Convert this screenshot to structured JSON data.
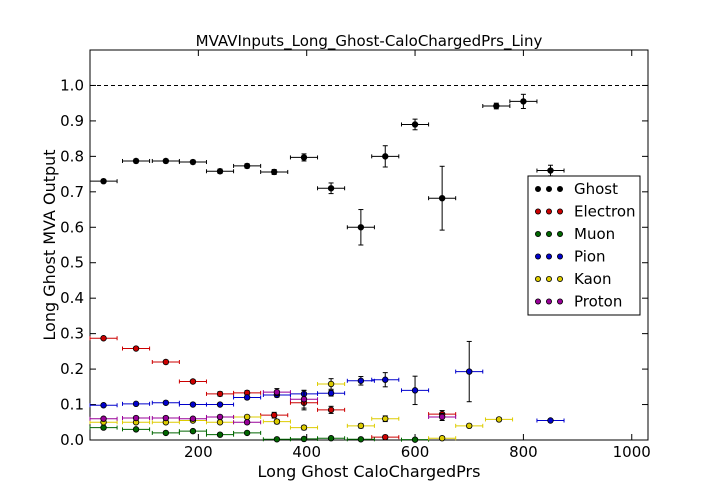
{
  "chart_data": {
    "type": "scatter",
    "title": "MVAVInputs_Long_Ghost-CaloChargedPrs_Liny",
    "xlabel": "Long Ghost CaloChargedPrs",
    "ylabel": "Long Ghost MVA Output",
    "xlim": [
      0,
      1030
    ],
    "ylim": [
      0,
      1.1
    ],
    "x_ticks": [
      200,
      400,
      600,
      800,
      1000
    ],
    "y_ticks": [
      0.0,
      0.1,
      0.2,
      0.3,
      0.4,
      0.5,
      0.6,
      0.7,
      0.8,
      0.9,
      1.0
    ],
    "reference_line": {
      "y": 1.0,
      "style": "dashed"
    },
    "grid": false,
    "legend_position": "right",
    "x_bin_half_width": 25,
    "series": [
      {
        "name": "Ghost",
        "color": "#000000",
        "points": [
          {
            "x": 25,
            "y": 0.73,
            "yerr": 0.005
          },
          {
            "x": 85,
            "y": 0.787,
            "yerr": 0.005
          },
          {
            "x": 140,
            "y": 0.787,
            "yerr": 0.005
          },
          {
            "x": 190,
            "y": 0.784,
            "yerr": 0.005
          },
          {
            "x": 240,
            "y": 0.758,
            "yerr": 0.006
          },
          {
            "x": 290,
            "y": 0.773,
            "yerr": 0.006
          },
          {
            "x": 340,
            "y": 0.756,
            "yerr": 0.007
          },
          {
            "x": 395,
            "y": 0.797,
            "yerr": 0.01
          },
          {
            "x": 445,
            "y": 0.71,
            "yerr": 0.015
          },
          {
            "x": 500,
            "y": 0.6,
            "yerr": 0.05
          },
          {
            "x": 545,
            "y": 0.8,
            "yerr": 0.03
          },
          {
            "x": 600,
            "y": 0.89,
            "yerr": 0.015
          },
          {
            "x": 650,
            "y": 0.682,
            "yerr": 0.09
          },
          {
            "x": 750,
            "y": 0.942,
            "yerr": 0.008
          },
          {
            "x": 800,
            "y": 0.955,
            "yerr": 0.02
          },
          {
            "x": 850,
            "y": 0.76,
            "yerr": 0.015
          }
        ]
      },
      {
        "name": "Electron",
        "color": "#cc0000",
        "points": [
          {
            "x": 25,
            "y": 0.287,
            "yerr": 0.004
          },
          {
            "x": 85,
            "y": 0.258,
            "yerr": 0.004
          },
          {
            "x": 140,
            "y": 0.22,
            "yerr": 0.005
          },
          {
            "x": 190,
            "y": 0.165,
            "yerr": 0.005
          },
          {
            "x": 240,
            "y": 0.13,
            "yerr": 0.006
          },
          {
            "x": 290,
            "y": 0.133,
            "yerr": 0.006
          },
          {
            "x": 340,
            "y": 0.07,
            "yerr": 0.008
          },
          {
            "x": 395,
            "y": 0.105,
            "yerr": 0.02
          },
          {
            "x": 445,
            "y": 0.085,
            "yerr": 0.01
          },
          {
            "x": 545,
            "y": 0.008,
            "yerr": 0.005
          },
          {
            "x": 650,
            "y": 0.073,
            "yerr": 0.01
          }
        ]
      },
      {
        "name": "Muon",
        "color": "#006600",
        "points": [
          {
            "x": 25,
            "y": 0.035,
            "yerr": 0.004
          },
          {
            "x": 85,
            "y": 0.03,
            "yerr": 0.004
          },
          {
            "x": 140,
            "y": 0.02,
            "yerr": 0.004
          },
          {
            "x": 190,
            "y": 0.025,
            "yerr": 0.004
          },
          {
            "x": 240,
            "y": 0.015,
            "yerr": 0.004
          },
          {
            "x": 290,
            "y": 0.02,
            "yerr": 0.004
          },
          {
            "x": 345,
            "y": 0.002,
            "yerr": 0.003
          },
          {
            "x": 395,
            "y": 0.003,
            "yerr": 0.003
          },
          {
            "x": 445,
            "y": 0.005,
            "yerr": 0.003
          },
          {
            "x": 500,
            "y": 0.002,
            "yerr": 0.003
          },
          {
            "x": 600,
            "y": 0.001,
            "yerr": 0.002
          }
        ]
      },
      {
        "name": "Pion",
        "color": "#0000cc",
        "points": [
          {
            "x": 25,
            "y": 0.098,
            "yerr": 0.004
          },
          {
            "x": 85,
            "y": 0.102,
            "yerr": 0.004
          },
          {
            "x": 140,
            "y": 0.105,
            "yerr": 0.004
          },
          {
            "x": 190,
            "y": 0.1,
            "yerr": 0.004
          },
          {
            "x": 240,
            "y": 0.1,
            "yerr": 0.004
          },
          {
            "x": 290,
            "y": 0.12,
            "yerr": 0.005
          },
          {
            "x": 345,
            "y": 0.127,
            "yerr": 0.006
          },
          {
            "x": 395,
            "y": 0.13,
            "yerr": 0.01
          },
          {
            "x": 445,
            "y": 0.132,
            "yerr": 0.008
          },
          {
            "x": 500,
            "y": 0.167,
            "yerr": 0.012
          },
          {
            "x": 545,
            "y": 0.17,
            "yerr": 0.02
          },
          {
            "x": 600,
            "y": 0.14,
            "yerr": 0.04
          },
          {
            "x": 700,
            "y": 0.193,
            "yerr": 0.085
          },
          {
            "x": 850,
            "y": 0.055,
            "yerr": 0.003
          }
        ]
      },
      {
        "name": "Kaon",
        "color": "#ddcc00",
        "points": [
          {
            "x": 25,
            "y": 0.05,
            "yerr": 0.004
          },
          {
            "x": 85,
            "y": 0.05,
            "yerr": 0.004
          },
          {
            "x": 140,
            "y": 0.05,
            "yerr": 0.004
          },
          {
            "x": 190,
            "y": 0.055,
            "yerr": 0.004
          },
          {
            "x": 240,
            "y": 0.05,
            "yerr": 0.004
          },
          {
            "x": 290,
            "y": 0.065,
            "yerr": 0.005
          },
          {
            "x": 345,
            "y": 0.052,
            "yerr": 0.006
          },
          {
            "x": 395,
            "y": 0.035,
            "yerr": 0.006
          },
          {
            "x": 445,
            "y": 0.158,
            "yerr": 0.015
          },
          {
            "x": 500,
            "y": 0.04,
            "yerr": 0.006
          },
          {
            "x": 545,
            "y": 0.06,
            "yerr": 0.008
          },
          {
            "x": 650,
            "y": 0.005,
            "yerr": 0.005
          },
          {
            "x": 700,
            "y": 0.04,
            "yerr": 0.005
          },
          {
            "x": 755,
            "y": 0.058,
            "yerr": 0.005
          }
        ]
      },
      {
        "name": "Proton",
        "color": "#990099",
        "points": [
          {
            "x": 25,
            "y": 0.06,
            "yerr": 0.004
          },
          {
            "x": 85,
            "y": 0.062,
            "yerr": 0.004
          },
          {
            "x": 140,
            "y": 0.062,
            "yerr": 0.004
          },
          {
            "x": 190,
            "y": 0.06,
            "yerr": 0.004
          },
          {
            "x": 240,
            "y": 0.065,
            "yerr": 0.005
          },
          {
            "x": 290,
            "y": 0.05,
            "yerr": 0.005
          },
          {
            "x": 345,
            "y": 0.135,
            "yerr": 0.01
          },
          {
            "x": 395,
            "y": 0.115,
            "yerr": 0.025
          },
          {
            "x": 650,
            "y": 0.065,
            "yerr": 0.01
          }
        ]
      }
    ]
  }
}
